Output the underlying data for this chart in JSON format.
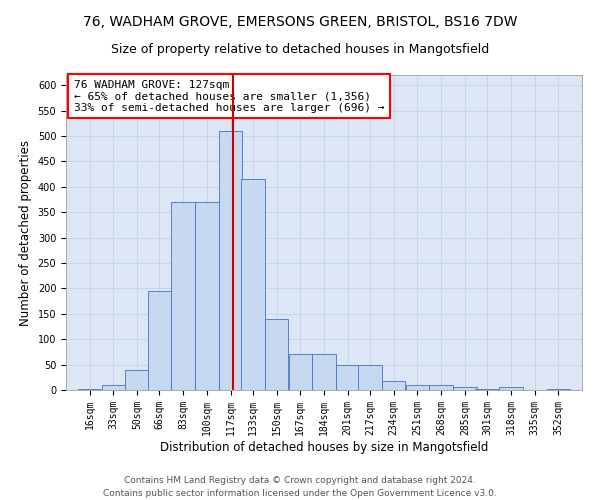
{
  "title_line1": "76, WADHAM GROVE, EMERSONS GREEN, BRISTOL, BS16 7DW",
  "title_line2": "Size of property relative to detached houses in Mangotsfield",
  "xlabel": "Distribution of detached houses by size in Mangotsfield",
  "ylabel": "Number of detached properties",
  "footer_line1": "Contains HM Land Registry data © Crown copyright and database right 2024.",
  "footer_line2": "Contains public sector information licensed under the Open Government Licence v3.0.",
  "annotation_line1": "76 WADHAM GROVE: 127sqm",
  "annotation_line2": "← 65% of detached houses are smaller (1,356)",
  "annotation_line3": "33% of semi-detached houses are larger (696) →",
  "bar_categories": [
    "16sqm",
    "33sqm",
    "50sqm",
    "66sqm",
    "83sqm",
    "100sqm",
    "117sqm",
    "133sqm",
    "150sqm",
    "167sqm",
    "184sqm",
    "201sqm",
    "217sqm",
    "234sqm",
    "251sqm",
    "268sqm",
    "285sqm",
    "301sqm",
    "318sqm",
    "335sqm",
    "352sqm"
  ],
  "bar_values": [
    2,
    10,
    40,
    195,
    370,
    370,
    510,
    415,
    140,
    70,
    70,
    50,
    50,
    18,
    10,
    10,
    5,
    2,
    5,
    0,
    2
  ],
  "bar_left_edges": [
    16,
    33,
    50,
    66,
    83,
    100,
    117,
    133,
    150,
    167,
    184,
    201,
    217,
    234,
    251,
    268,
    285,
    301,
    318,
    335,
    352
  ],
  "bin_width": 17,
  "bar_color": "#c6d9f0",
  "bar_edge_color": "#4472c4",
  "vline_color": "#cc0000",
  "vline_x": 127,
  "grid_color": "#c8d4e8",
  "bg_color": "#dce6f5",
  "ylim": [
    0,
    620
  ],
  "yticks": [
    0,
    50,
    100,
    150,
    200,
    250,
    300,
    350,
    400,
    450,
    500,
    550,
    600
  ],
  "title_fontsize": 10,
  "subtitle_fontsize": 9,
  "axis_label_fontsize": 8.5,
  "tick_fontsize": 7,
  "annotation_fontsize": 8,
  "footer_fontsize": 6.5
}
